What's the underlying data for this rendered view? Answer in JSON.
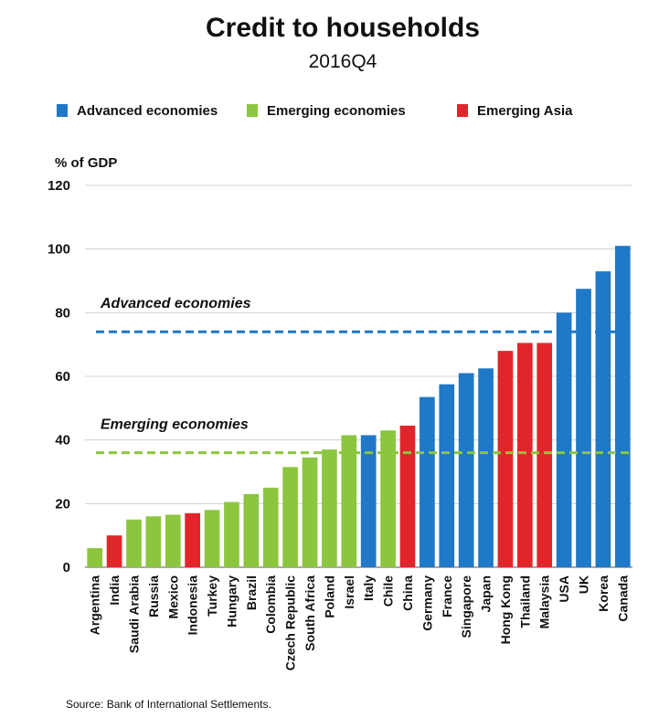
{
  "header": {
    "title": "Credit to households",
    "subtitle": "2016Q4"
  },
  "legend": {
    "items": [
      {
        "label": "Advanced economies",
        "color": "#1f78c8"
      },
      {
        "label": "Emerging economies",
        "color": "#8cc63f"
      },
      {
        "label": "Emerging Asia",
        "color": "#e0262b"
      }
    ]
  },
  "footer": {
    "source": "Source: Bank of International Settlements."
  },
  "chart_data": {
    "type": "bar",
    "title": "Credit to households",
    "subtitle": "2016Q4",
    "ylabel": "% of GDP",
    "xlabel": "",
    "ylim": [
      0,
      120
    ],
    "yticks": [
      0,
      20,
      40,
      60,
      80,
      100,
      120
    ],
    "grid": true,
    "legend_position": "top",
    "group_colors": {
      "advanced": "#1f78c8",
      "emerging": "#8cc63f",
      "emerging_asia": "#e0262b"
    },
    "categories": [
      "Argentina",
      "India",
      "Saudi Arabia",
      "Russia",
      "Mexico",
      "Indonesia",
      "Turkey",
      "Hungary",
      "Brazil",
      "Colombia",
      "Czech Republic",
      "South Africa",
      "Poland",
      "Israel",
      "Italy",
      "Chile",
      "China",
      "Germany",
      "France",
      "Singapore",
      "Japan",
      "Hong Kong",
      "Thailand",
      "Malaysia",
      "USA",
      "UK",
      "Korea",
      "Canada"
    ],
    "groups": [
      "emerging",
      "emerging_asia",
      "emerging",
      "emerging",
      "emerging",
      "emerging_asia",
      "emerging",
      "emerging",
      "emerging",
      "emerging",
      "emerging",
      "emerging",
      "emerging",
      "emerging",
      "advanced",
      "emerging",
      "emerging_asia",
      "advanced",
      "advanced",
      "advanced",
      "advanced",
      "emerging_asia",
      "emerging_asia",
      "emerging_asia",
      "advanced",
      "advanced",
      "advanced",
      "advanced"
    ],
    "values": [
      6,
      10,
      15,
      16,
      16.5,
      17,
      18,
      20.5,
      23,
      25,
      31.5,
      34.5,
      37,
      41.5,
      41.5,
      43,
      44.5,
      53.5,
      57.5,
      61,
      62.5,
      68,
      70.5,
      70.5,
      80,
      87.5,
      93,
      101
    ],
    "reference_lines": [
      {
        "label": "Advanced economies",
        "value": 74,
        "color": "#1f78c8"
      },
      {
        "label": "Emerging economies",
        "value": 36,
        "color": "#8cc63f"
      }
    ]
  }
}
